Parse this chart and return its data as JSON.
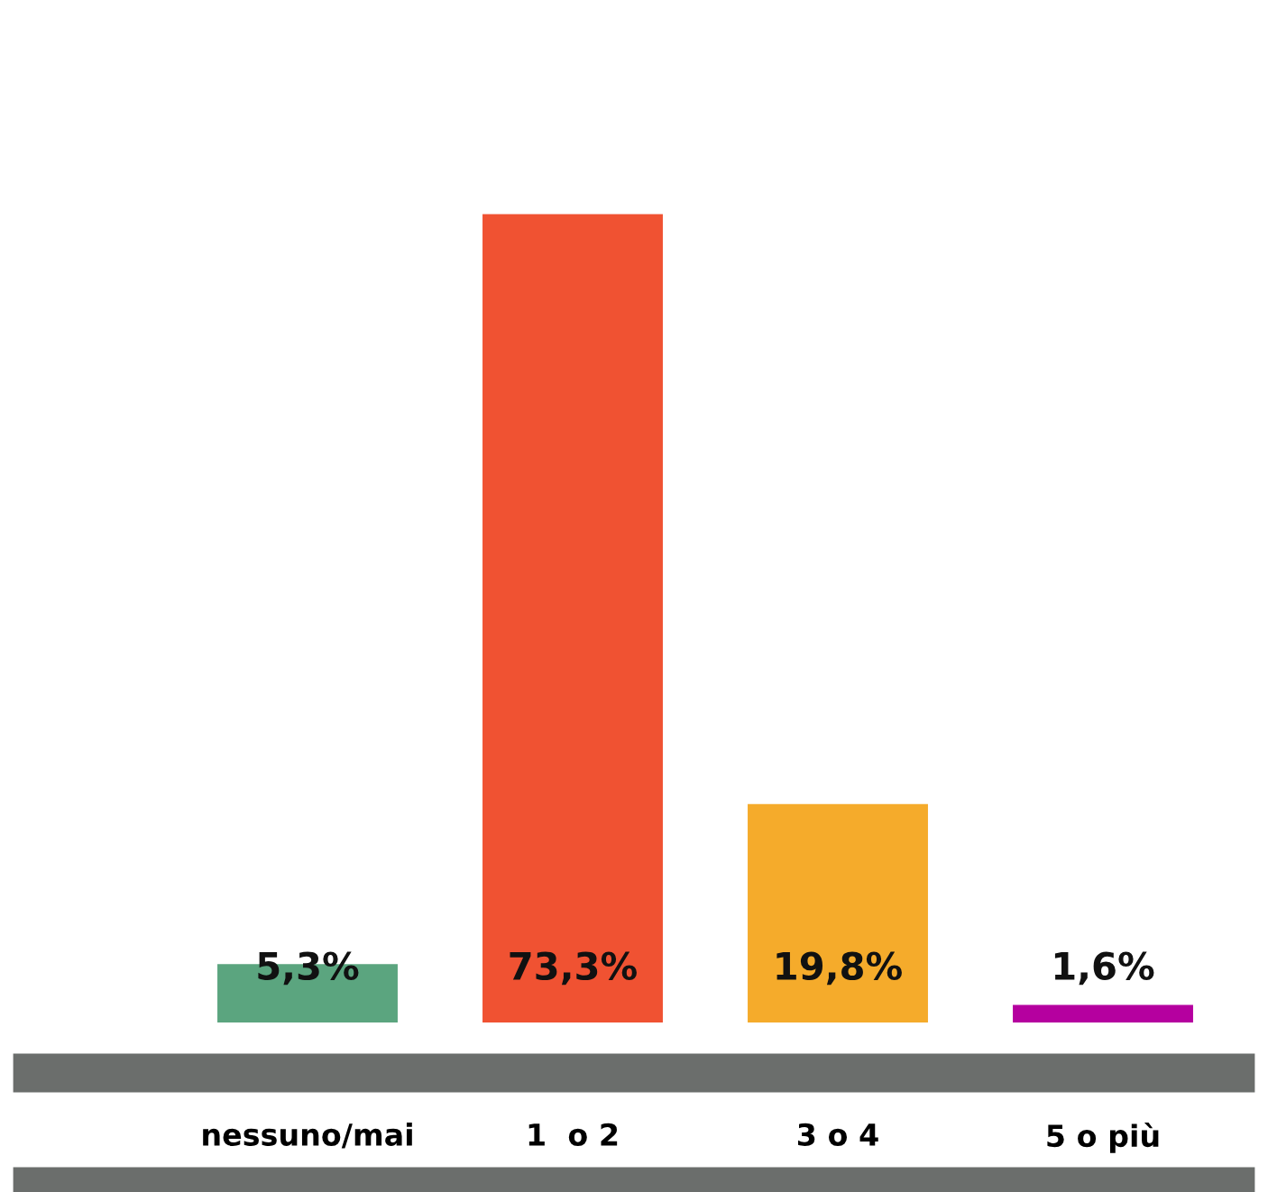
{
  "chart_data": {
    "type": "bar",
    "categories": [
      "nessuno/mai",
      "1  o 2",
      "3 o 4",
      "5 o più"
    ],
    "values": [
      5.3,
      73.3,
      19.8,
      1.6
    ],
    "colors": [
      "#5ba57f",
      "#f05232",
      "#f5ab2b",
      "#b5009f"
    ],
    "value_labels": [
      "5,3%",
      "73,3%",
      "19,8%",
      "1,6%"
    ],
    "grid": false,
    "legend": false
  }
}
